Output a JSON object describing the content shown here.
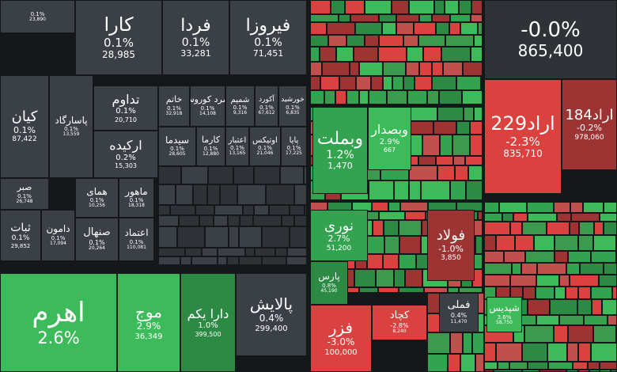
{
  "tiles": [
    {
      "change": "0.1%",
      "value": "23,890"
    },
    {
      "name": "کارا",
      "change": "0.1%",
      "value": "28,985"
    },
    {
      "name": "فردا",
      "change": "0.1%",
      "value": "33,281"
    },
    {
      "name": "فیروزا",
      "change": "0.1%",
      "value": "71,451"
    },
    {
      "name": "کیان",
      "change": "0.1%",
      "value": "87,422"
    },
    {
      "name": "پاسارگاد",
      "change": "0.1%",
      "value": "13,559"
    },
    {
      "name": "تداوم",
      "change": "0.1%",
      "value": "20,710"
    },
    {
      "name": "ارکیده",
      "change": "0.2%",
      "value": "15,303"
    },
    {
      "name": "خاتم",
      "change": "0.1%",
      "value": "32,918"
    },
    {
      "name": "زمرد کوروش",
      "change": "0.1%",
      "value": "14,108"
    },
    {
      "name": "شمیم",
      "change": "0.1%",
      "value": "9,316"
    },
    {
      "name": "آکورد",
      "change": "0.1%",
      "value": "67,612"
    },
    {
      "name": "خورشید",
      "change": "0.1%",
      "value": "6,835"
    },
    {
      "name": "سیدما",
      "change": "0.1%",
      "value": "28,605"
    },
    {
      "name": "کارما",
      "change": "0.1%",
      "value": "12,880"
    },
    {
      "name": "اعتبار",
      "change": "0.1%",
      "value": "13,165"
    },
    {
      "name": "اوتیکس",
      "change": "0.1%",
      "value": "21,046"
    },
    {
      "name": "پایا",
      "change": "0.1%",
      "value": "17,225"
    },
    {
      "name": "صبر",
      "change": "0.1%",
      "value": "26,748"
    },
    {
      "name": "ثبات",
      "change": "0.1%",
      "value": "29,852"
    },
    {
      "name": "دامون",
      "change": "0.1%",
      "value": "17,094"
    },
    {
      "name": "همای",
      "change": "0.1%",
      "value": "10,256"
    },
    {
      "name": "ماهور",
      "change": "0.1%",
      "value": "18,318"
    },
    {
      "name": "صنهال",
      "change": "0.1%",
      "value": "20,264"
    },
    {
      "name": "اعتماد",
      "change": "0.1%",
      "value": "110,081"
    },
    {
      "name": "اهرم",
      "change": "2.6%"
    },
    {
      "name": "موج",
      "change": "2.9%",
      "value": "36,349"
    },
    {
      "name": "دارا یکم",
      "change": "1.0%",
      "value": "399,500"
    },
    {
      "name": "پالایش",
      "change": "0.4%",
      "value": "299,400"
    },
    {
      "change": "-0.0%",
      "value": "865,400"
    },
    {
      "name": "اراد229",
      "change": "-2.3%",
      "value": "835,710"
    },
    {
      "name": "اراد184",
      "change": "-0.2%",
      "value": "978,060"
    },
    {
      "name": "وبملت",
      "change": "1.2%",
      "value": "1,470"
    },
    {
      "name": "وبصدار",
      "change": "2.9%",
      "value": "667"
    },
    {
      "name": "نوری",
      "change": "2.7%",
      "value": "51,200"
    },
    {
      "name": "پارس",
      "change": "0.8%",
      "value": "45,190"
    },
    {
      "name": "فولاد",
      "change": "-1.0%",
      "value": "3,850"
    },
    {
      "name": "فزر",
      "change": "-3.0%",
      "value": "100,000"
    },
    {
      "name": "کچاد",
      "change": "-2.8%",
      "value": "8,240"
    },
    {
      "name": "فملی",
      "change": "0.4%",
      "value": "11,470"
    },
    {
      "name": "شپدیس",
      "change": "3.6%",
      "value": "58,750"
    }
  ]
}
